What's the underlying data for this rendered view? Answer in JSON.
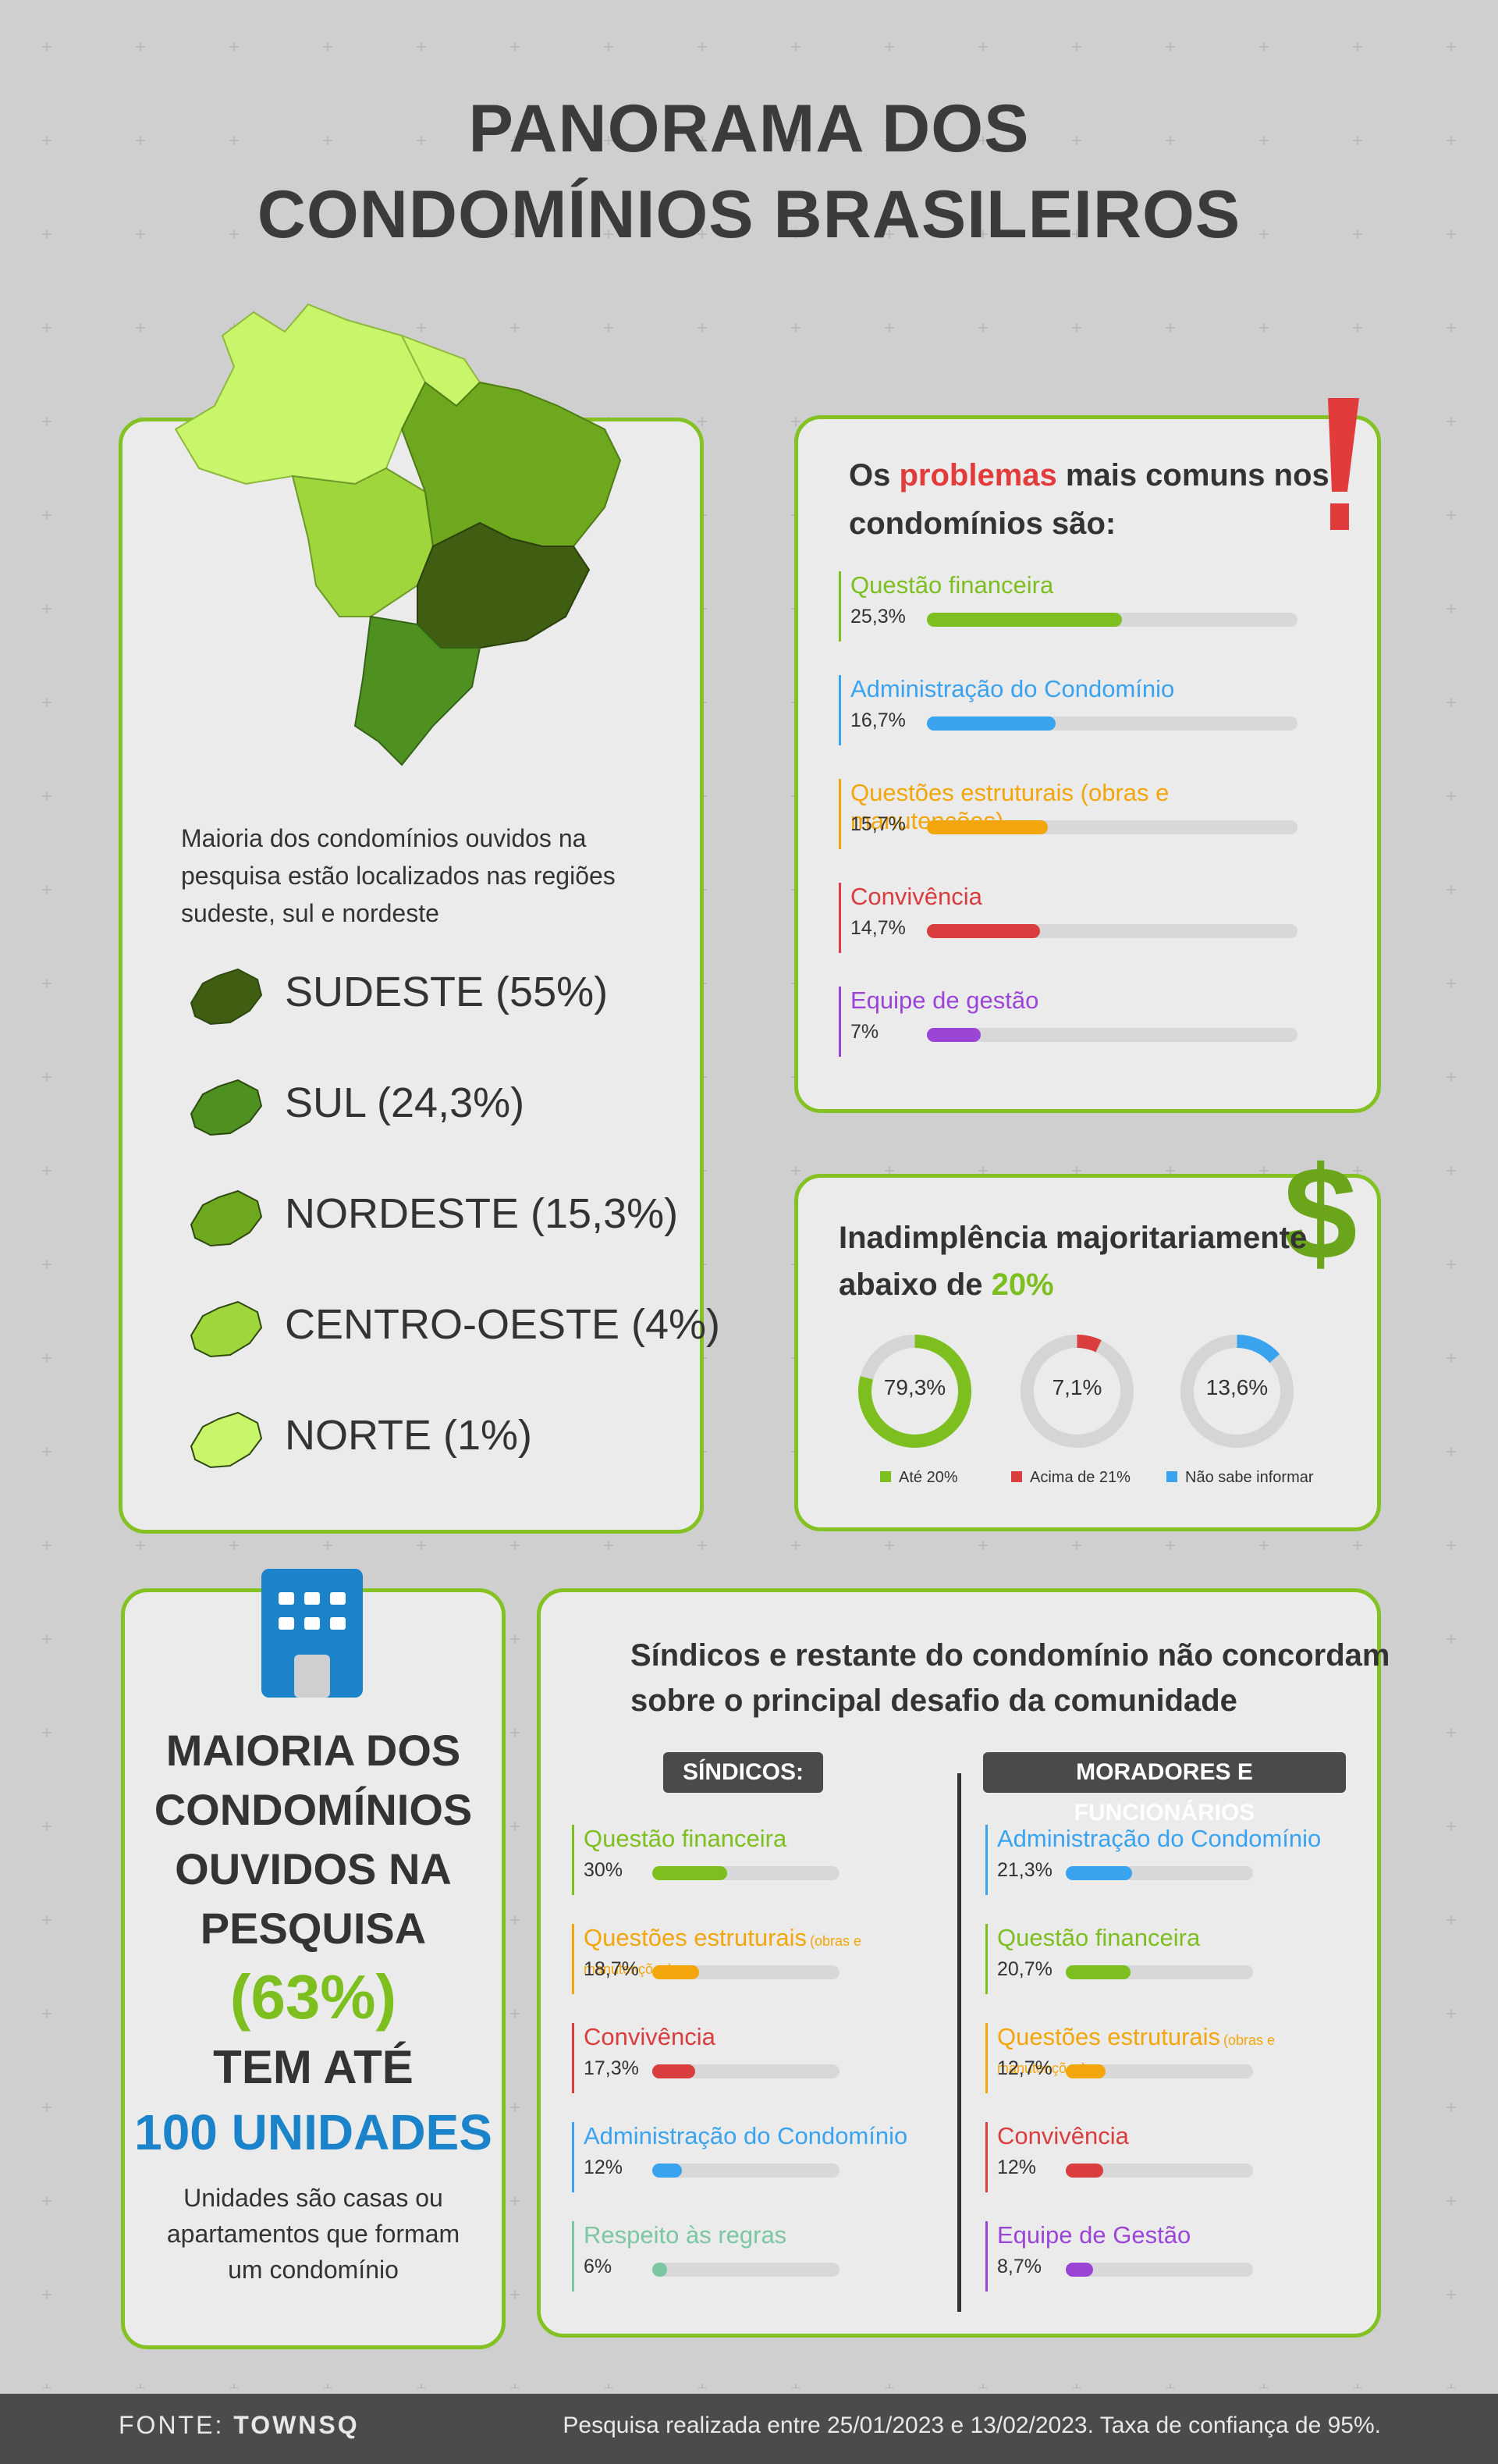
{
  "title": {
    "line1": "PANORAMA DOS",
    "line2": "CONDOMÍNIOS BRASILEIROS"
  },
  "regions": {
    "intro": "Maioria dos condomínios ouvidos na pesquisa estão localizados nas regiões sudeste, sul e nordeste",
    "items": [
      {
        "label": "SUDESTE (55%)",
        "color": "#3f5e12"
      },
      {
        "label": "SUL (24,3%)",
        "color": "#4e9120"
      },
      {
        "label": "NORDESTE (15,3%)",
        "color": "#6da81e"
      },
      {
        "label": "CENTRO-OESTE (4%)",
        "color": "#9fd63c"
      },
      {
        "label": "NORTE (1%)",
        "color": "#c9f56b"
      }
    ]
  },
  "problems": {
    "title_pre": "Os ",
    "title_highlight": "problemas",
    "title_post": " mais comuns nos",
    "title_line2": "condomínios são:",
    "items": [
      {
        "label": "Questão financeira",
        "value": "25,3%",
        "pct": 25.3,
        "color": "#7cbf1e"
      },
      {
        "label": "Administração do Condomínio",
        "value": "16,7%",
        "pct": 16.7,
        "color": "#3aa3f0"
      },
      {
        "label": "Questões estruturais (obras e manutenções)",
        "value": "15,7%",
        "pct": 15.7,
        "color": "#f2a60c"
      },
      {
        "label": "Convivência",
        "value": "14,7%",
        "pct": 14.7,
        "color": "#d93d3d"
      },
      {
        "label": "Equipe de gestão",
        "value": "7%",
        "pct": 7,
        "color": "#9b45d6"
      }
    ]
  },
  "inadimplencia": {
    "title_line1": "Inadimplência majoritariamente",
    "title_pre": "abaixo de ",
    "title_highlight": "20%",
    "donuts": [
      {
        "value": "79,3%",
        "pct": 79.3,
        "color": "#7cbf1e",
        "legend": "Até 20%"
      },
      {
        "value": "7,1%",
        "pct": 7.1,
        "color": "#d93d3d",
        "legend": "Acima de 21%"
      },
      {
        "value": "13,6%",
        "pct": 13.6,
        "color": "#3aa3f0",
        "legend": "Não sabe informar"
      }
    ]
  },
  "units": {
    "lines": [
      "MAIORIA DOS",
      "CONDOMÍNIOS",
      "OUVIDOS NA",
      "PESQUISA"
    ],
    "highlight": "(63%)",
    "line_after": "TEM ATÉ",
    "blue": "100 UNIDADES",
    "note": [
      "Unidades são casas ou",
      "apartamentos que formam",
      "um condomínio"
    ]
  },
  "disagree": {
    "title_line1": "Síndicos e restante do condomínio não concordam",
    "title_line2": "sobre o principal desafio da comunidade",
    "sindicos_header": "SÍNDICOS:",
    "moradores_header": "MORADORES E FUNCIONÁRIOS",
    "sindicos": [
      {
        "label": "Questão financeira",
        "sub": "",
        "value": "30%",
        "pct": 30,
        "color": "#7cbf1e"
      },
      {
        "label": "Questões estruturais",
        "sub": "(obras e manutenções)",
        "value": "18,7%",
        "pct": 18.7,
        "color": "#f2a60c"
      },
      {
        "label": "Convivência",
        "sub": "",
        "value": "17,3%",
        "pct": 17.3,
        "color": "#d93d3d"
      },
      {
        "label": "Administração do Condomínio",
        "sub": "",
        "value": "12%",
        "pct": 12,
        "color": "#3aa3f0"
      },
      {
        "label": "Respeito às regras",
        "sub": "",
        "value": "6%",
        "pct": 6,
        "color": "#7cc6a4"
      }
    ],
    "moradores": [
      {
        "label": "Administração do Condomínio",
        "sub": "",
        "value": "21,3%",
        "pct": 21.3,
        "color": "#3aa3f0"
      },
      {
        "label": "Questão financeira",
        "sub": "",
        "value": "20,7%",
        "pct": 20.7,
        "color": "#7cbf1e"
      },
      {
        "label": "Questões estruturais",
        "sub": "(obras e manutenções)",
        "value": "12,7%",
        "pct": 12.7,
        "color": "#f2a60c"
      },
      {
        "label": "Convivência",
        "sub": "",
        "value": "12%",
        "pct": 12,
        "color": "#d93d3d"
      },
      {
        "label": "Equipe de Gestão",
        "sub": "",
        "value": "8,7%",
        "pct": 8.7,
        "color": "#9b45d6"
      }
    ]
  },
  "footer": {
    "source_label": "FONTE: ",
    "source_name": "TOWNSQ",
    "note": "Pesquisa realizada entre 25/01/2023 e 13/02/2023. Taxa de confiança de 95%."
  }
}
